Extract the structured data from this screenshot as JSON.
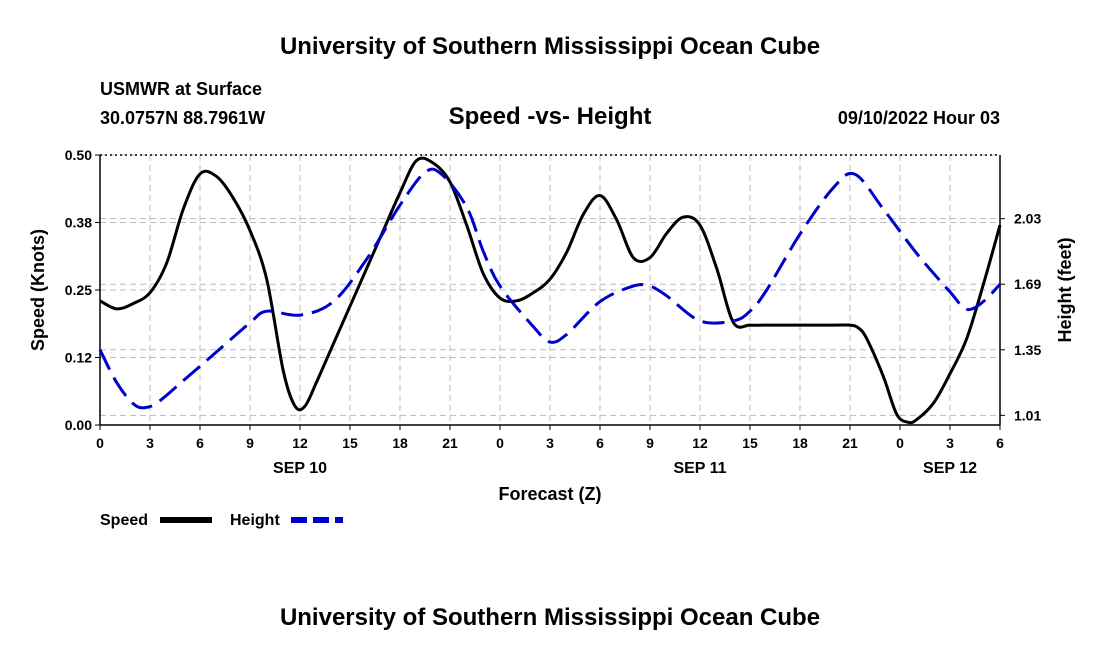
{
  "page": {
    "top_title": "University of Southern Mississippi Ocean Cube",
    "bottom_title": "University of Southern Mississippi Ocean Cube"
  },
  "header": {
    "station": "USMWR at Surface",
    "coords": "30.0757N  88.7961W",
    "datetime": "09/10/2022 Hour 03"
  },
  "colors": {
    "speed": "#000000",
    "height": "#0000cc",
    "grid": "#bbbbbb"
  },
  "chart_data": {
    "type": "line",
    "title": "Speed -vs- Height",
    "xlabel": "Forecast (Z)",
    "ylabel": "Speed (Knots)",
    "y2label": "Height (feet)",
    "x_range_hours": [
      0,
      54
    ],
    "x_ticks": [
      {
        "h": 0,
        "label": "0"
      },
      {
        "h": 3,
        "label": "3"
      },
      {
        "h": 6,
        "label": "6"
      },
      {
        "h": 9,
        "label": "9"
      },
      {
        "h": 12,
        "label": "12"
      },
      {
        "h": 15,
        "label": "15"
      },
      {
        "h": 18,
        "label": "18"
      },
      {
        "h": 21,
        "label": "21"
      },
      {
        "h": 24,
        "label": "0"
      },
      {
        "h": 27,
        "label": "3"
      },
      {
        "h": 30,
        "label": "6"
      },
      {
        "h": 33,
        "label": "9"
      },
      {
        "h": 36,
        "label": "12"
      },
      {
        "h": 39,
        "label": "15"
      },
      {
        "h": 42,
        "label": "18"
      },
      {
        "h": 45,
        "label": "21"
      },
      {
        "h": 48,
        "label": "0"
      },
      {
        "h": 51,
        "label": "3"
      },
      {
        "h": 54,
        "label": "6"
      }
    ],
    "date_labels": [
      {
        "h": 12,
        "label": "SEP 10"
      },
      {
        "h": 36,
        "label": "SEP 11"
      },
      {
        "h": 51,
        "label": "SEP 12"
      }
    ],
    "y_ticks": [
      {
        "v": 0.0,
        "label": "0.00"
      },
      {
        "v": 0.125,
        "label": "0.12"
      },
      {
        "v": 0.25,
        "label": "0.25"
      },
      {
        "v": 0.375,
        "label": "0.38"
      },
      {
        "v": 0.5,
        "label": "0.50"
      }
    ],
    "ylim": [
      0,
      0.5
    ],
    "y2_ticks": [
      {
        "v": 1.01,
        "label": "1.01"
      },
      {
        "v": 1.35,
        "label": "1.35"
      },
      {
        "v": 1.69,
        "label": "1.69"
      },
      {
        "v": 2.03,
        "label": "2.03"
      }
    ],
    "y2lim": [
      0.96,
      2.36
    ],
    "series": [
      {
        "name": "Speed",
        "axis": "left",
        "style": "solid",
        "x": [
          0,
          1,
          2,
          3,
          4,
          5,
          6,
          7,
          8,
          9,
          10,
          11,
          11.7,
          12.3,
          13,
          14,
          15,
          16,
          17,
          18,
          19,
          20,
          21,
          22,
          23,
          24,
          25,
          26,
          27,
          28,
          29,
          30,
          31,
          32,
          33,
          34,
          35,
          36,
          37,
          38,
          39,
          40,
          42,
          44,
          45,
          45.5,
          46,
          47,
          47.8,
          48.5,
          49,
          50,
          51,
          52,
          53,
          54
        ],
        "values": [
          0.23,
          0.215,
          0.225,
          0.245,
          0.3,
          0.4,
          0.465,
          0.46,
          0.42,
          0.36,
          0.27,
          0.1,
          0.035,
          0.035,
          0.08,
          0.15,
          0.22,
          0.29,
          0.36,
          0.43,
          0.49,
          0.485,
          0.45,
          0.37,
          0.28,
          0.235,
          0.23,
          0.245,
          0.27,
          0.32,
          0.39,
          0.425,
          0.38,
          0.31,
          0.31,
          0.355,
          0.385,
          0.37,
          0.29,
          0.19,
          0.185,
          0.185,
          0.185,
          0.185,
          0.185,
          0.18,
          0.16,
          0.09,
          0.02,
          0.005,
          0.01,
          0.04,
          0.095,
          0.16,
          0.26,
          0.37
        ]
      },
      {
        "name": "Height",
        "axis": "right",
        "style": "dashed",
        "x": [
          0,
          1,
          2,
          2.7,
          3.5,
          5,
          7,
          9,
          10,
          12,
          14,
          16,
          18,
          19.5,
          20.5,
          22,
          23,
          24,
          26,
          27,
          28,
          30,
          32,
          33,
          34,
          36,
          38,
          39,
          40,
          42,
          44,
          45.3,
          47,
          49,
          51,
          52,
          53,
          54
        ],
        "values": [
          1.35,
          1.18,
          1.07,
          1.05,
          1.08,
          1.19,
          1.34,
          1.49,
          1.55,
          1.53,
          1.6,
          1.82,
          2.1,
          2.27,
          2.26,
          2.09,
          1.86,
          1.68,
          1.47,
          1.39,
          1.43,
          1.6,
          1.68,
          1.68,
          1.63,
          1.5,
          1.5,
          1.55,
          1.66,
          1.95,
          2.19,
          2.26,
          2.08,
          1.85,
          1.65,
          1.56,
          1.6,
          1.69
        ]
      }
    ],
    "legend": [
      {
        "label": "Speed",
        "style": "solid"
      },
      {
        "label": "Height",
        "style": "dashed"
      }
    ],
    "legend_position": "bottom-left"
  }
}
